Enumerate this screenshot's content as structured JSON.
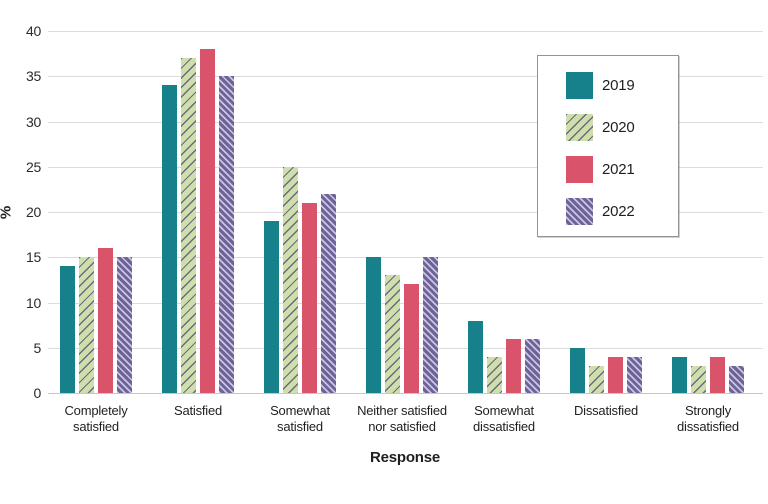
{
  "chart_data": {
    "type": "bar",
    "title": "",
    "xlabel": "Response",
    "ylabel": "%",
    "ylim": [
      0,
      40
    ],
    "yticks": [
      0,
      5,
      10,
      15,
      20,
      25,
      30,
      35,
      40
    ],
    "grid": "horizontal",
    "legend_position": "top-right",
    "categories": [
      "Completely satisfied",
      "Satisfied",
      "Somewhat satisfied",
      "Neither satisfied nor satisfied",
      "Somewhat dissatisfied",
      "Dissatisfied",
      "Strongly dissatisfied"
    ],
    "series": [
      {
        "name": "2019",
        "color": "#17818B",
        "pattern": "solid",
        "hatch_color": "",
        "values": [
          14,
          34,
          19,
          15,
          8,
          5,
          4
        ]
      },
      {
        "name": "2020",
        "color": "#CEDFAC",
        "pattern": "hatch-forward",
        "hatch_color": "#6B687F",
        "values": [
          15,
          37,
          25,
          13,
          4,
          3,
          3
        ]
      },
      {
        "name": "2021",
        "color": "#D9536B",
        "pattern": "solid",
        "hatch_color": "",
        "values": [
          16,
          38,
          21,
          12,
          6,
          4,
          4
        ]
      },
      {
        "name": "2022",
        "color": "#6E6399",
        "pattern": "hatch-backward",
        "hatch_color": "#CCC5E2",
        "values": [
          15,
          35,
          22,
          15,
          6,
          4,
          3
        ]
      }
    ]
  }
}
